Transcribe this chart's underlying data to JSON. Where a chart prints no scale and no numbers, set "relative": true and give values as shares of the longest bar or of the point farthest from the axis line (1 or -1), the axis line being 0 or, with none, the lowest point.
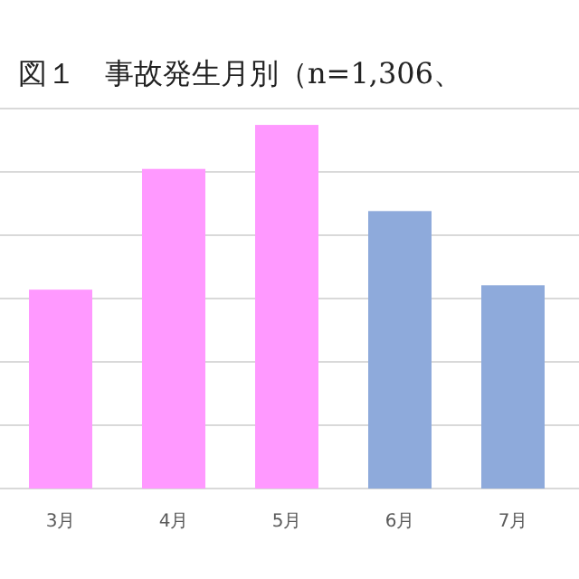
{
  "chart_data": {
    "type": "bar",
    "title": "図１　事故発生月別（n=1,306、",
    "categories": [
      "3月",
      "4月",
      "5月",
      "6月",
      "7月"
    ],
    "values": [
      0.547,
      0.879,
      1,
      0.763,
      0.559
    ],
    "colors": [
      "#ff99ff",
      "#ff99ff",
      "#ff99ff",
      "#8eaadb",
      "#8eaadb"
    ],
    "relative": true,
    "grid": "y"
  }
}
